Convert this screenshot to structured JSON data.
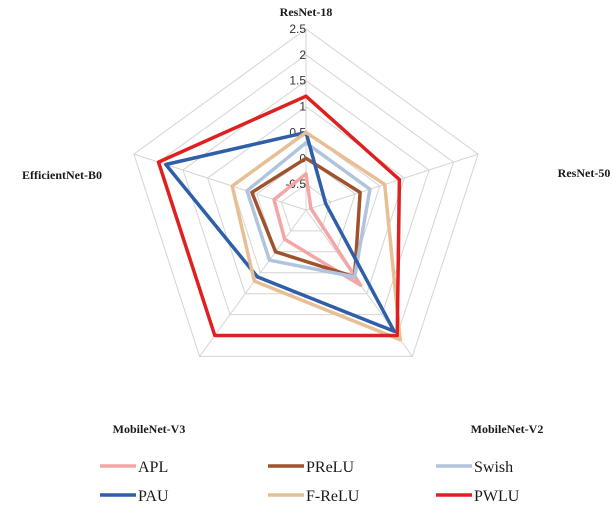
{
  "chart_data": {
    "type": "radar",
    "axes": [
      "ResNet-18",
      "ResNet-50",
      "MobileNet-V2",
      "MobileNet-V3",
      "EfficientNet-B0"
    ],
    "ticks": [
      "-0.5",
      "0",
      "0.5",
      "1",
      "1.5",
      "2",
      "2.5"
    ],
    "range": [
      -1,
      2.5
    ],
    "grid": true,
    "legend_position": "bottom",
    "series": [
      {
        "name": "APL",
        "color": "#f4a6a6",
        "values": [
          -0.3,
          -0.9,
          0.8,
          -0.3,
          -0.35
        ]
      },
      {
        "name": "PReLU",
        "color": "#a0522d",
        "values": [
          0.0,
          0.1,
          0.6,
          0.0,
          0.1
        ]
      },
      {
        "name": "Swish",
        "color": "#b0c4de",
        "values": [
          0.3,
          0.3,
          0.6,
          0.2,
          0.2
        ]
      },
      {
        "name": "PAU",
        "color": "#2e5fa8",
        "values": [
          0.5,
          -0.6,
          1.9,
          0.6,
          1.85
        ]
      },
      {
        "name": "F-ReLU",
        "color": "#e8bf94",
        "values": [
          0.5,
          0.6,
          2.1,
          0.7,
          0.5
        ]
      },
      {
        "name": "PWLU",
        "color": "#e02020",
        "values": [
          1.2,
          0.9,
          2.0,
          2.0,
          2.0
        ]
      }
    ]
  }
}
